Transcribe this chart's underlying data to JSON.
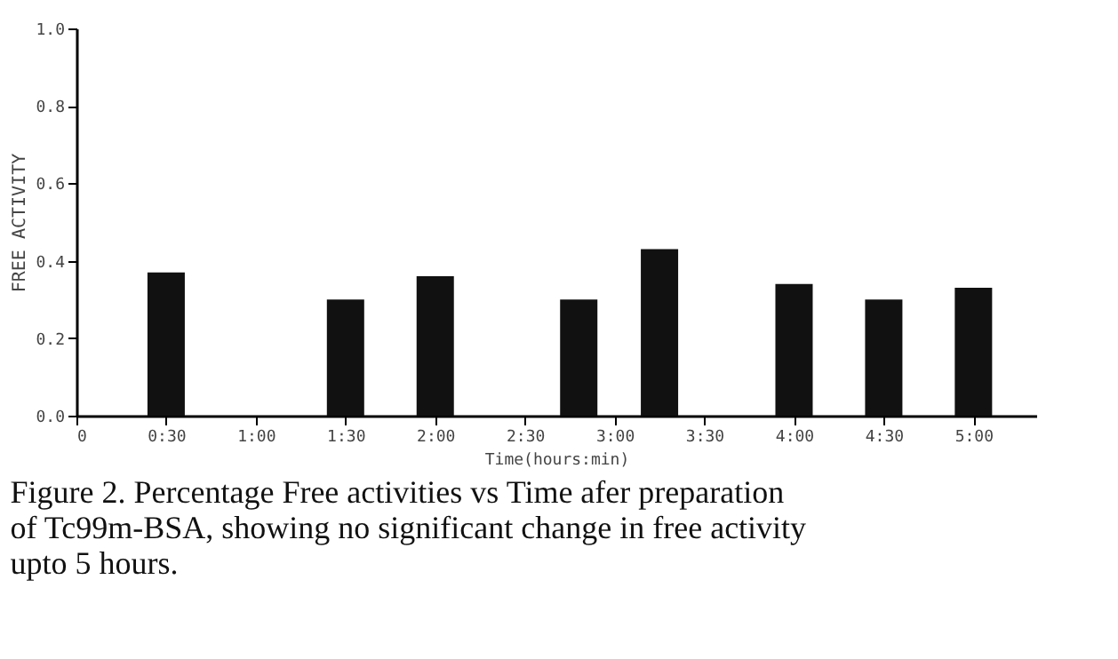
{
  "chart_data": {
    "type": "bar",
    "xlabel": "Time(hours:min)",
    "ylabel": "FREE ACTIVITY",
    "x": [
      0.5,
      1.5,
      2.0,
      2.8,
      3.25,
      4.0,
      4.5,
      5.0
    ],
    "series": [
      {
        "color": "#111111",
        "values": [
          0.37,
          0.3,
          0.36,
          0.3,
          0.43,
          0.34,
          0.3,
          0.33
        ]
      }
    ],
    "xlim": [
      0,
      5.35
    ],
    "xticks": [
      {
        "value": 0,
        "label": "0"
      },
      {
        "value": 0.5,
        "label": "0:30"
      },
      {
        "value": 1.0,
        "label": "1:00"
      },
      {
        "value": 1.5,
        "label": "1:30"
      },
      {
        "value": 2.0,
        "label": "2:00"
      },
      {
        "value": 2.5,
        "label": "2:30"
      },
      {
        "value": 3.0,
        "label": "3:00"
      },
      {
        "value": 3.5,
        "label": "3:30"
      },
      {
        "value": 4.0,
        "label": "4:00"
      },
      {
        "value": 4.5,
        "label": "4:30"
      },
      {
        "value": 5.0,
        "label": "5:00"
      }
    ],
    "ylim": [
      0,
      1.0
    ],
    "yticks": [
      {
        "value": 0,
        "label": "0.0"
      },
      {
        "value": 0.2,
        "label": "0.2"
      },
      {
        "value": 0.4,
        "label": "0.4"
      },
      {
        "value": 0.6,
        "label": "0.6"
      },
      {
        "value": 0.8,
        "label": "0.8"
      },
      {
        "value": 1.0,
        "label": "1.0"
      }
    ],
    "grid": false,
    "annotations": [
      "Figure 2.  Percentage Free activities vs Time afer preparation of Tc99m-BSA, showing no significant change in free activity upto 5 hours."
    ]
  }
}
